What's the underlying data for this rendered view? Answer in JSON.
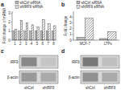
{
  "chart_data": [
    {
      "type": "bar",
      "title": "a",
      "ylabel": "Fold change of mRNA",
      "categories": [
        "1",
        "2",
        "3",
        "4",
        "5",
        "6",
        "7",
        "8"
      ],
      "series": [
        {
          "name": "shCtrl siRNA",
          "color": "#bbbbbb",
          "values": [
            1.0,
            1.0,
            1.0,
            1.0,
            1.0,
            1.0,
            1.0,
            1.0
          ]
        },
        {
          "name": "shIRF9 siRNA",
          "color": "#ffffff",
          "values": [
            1.2,
            2.2,
            1.9,
            1.7,
            1.5,
            2.3,
            1.8,
            1.6
          ]
        }
      ],
      "ylim": [
        0,
        3.2
      ],
      "yticks": [
        0,
        1,
        2,
        3
      ],
      "legend": "upper left",
      "grid": false
    },
    {
      "type": "bar",
      "title": "b",
      "ylabel": "Fold change",
      "categories": [
        "MCF-7",
        "LTPs"
      ],
      "series": [
        {
          "name": "shCtrl siRNA",
          "color": "#bbbbbb",
          "values": [
            0.5,
            0.28
          ]
        },
        {
          "name": "shIRF9 siRNA",
          "color": "#ffffff",
          "values": [
            3.8,
            1.5
          ]
        }
      ],
      "ylim": [
        0,
        5.0
      ],
      "yticks": [
        0,
        1,
        2,
        3,
        4
      ],
      "legend": "upper left",
      "grid": false
    },
    {
      "type": "blot",
      "title": "c",
      "categories": [
        "shCtrl",
        "shIRF9"
      ],
      "series": [
        {
          "name": "IRF9",
          "colors": [
            "#888888",
            "#c5c5c5"
          ]
        },
        {
          "name": "β-actin",
          "colors": [
            "#999999",
            "#aaaaaa"
          ]
        }
      ]
    },
    {
      "type": "blot",
      "title": "d",
      "categories": [
        "shCtrl",
        "shIRF9"
      ],
      "series": [
        {
          "name": "IRF9",
          "colors": [
            "#787878",
            "#c0c0c0"
          ]
        },
        {
          "name": "β-actin",
          "colors": [
            "#909090",
            "#aaaaaa"
          ]
        }
      ]
    }
  ]
}
